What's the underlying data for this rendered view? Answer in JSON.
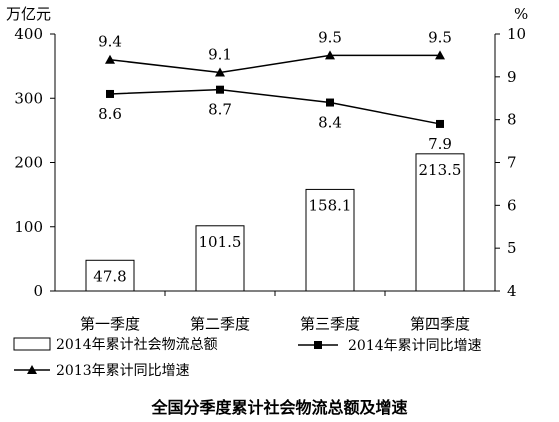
{
  "chart_data": {
    "type": "bar",
    "title": "全国分季度累计社会物流总额及增速",
    "categories": [
      "第一季度",
      "第二季度",
      "第三季度",
      "第四季度"
    ],
    "y_left": {
      "unit": "万亿元",
      "range": [
        0,
        400
      ],
      "ticks": [
        "0",
        "100",
        "200",
        "300",
        "400"
      ]
    },
    "y_right": {
      "unit": "%",
      "range": [
        4,
        10
      ],
      "ticks": [
        "4",
        "5",
        "6",
        "7",
        "8",
        "9",
        "10"
      ]
    },
    "series": [
      {
        "name": "2014年累计社会物流总额",
        "type": "bar",
        "axis": "left",
        "values": [
          47.8,
          101.5,
          158.1,
          213.5
        ],
        "labels": [
          "47.8",
          "101.5",
          "158.1",
          "213.5"
        ]
      },
      {
        "name": "2014年累计同比增速",
        "type": "line",
        "marker": "square",
        "axis": "right",
        "values": [
          8.6,
          8.7,
          8.4,
          7.9
        ],
        "labels": [
          "8.6",
          "8.7",
          "8.4",
          "7.9"
        ]
      },
      {
        "name": "2013年累计同比增速",
        "type": "line",
        "marker": "triangle",
        "axis": "right",
        "values": [
          9.4,
          9.1,
          9.5,
          9.5
        ],
        "labels": [
          "9.4",
          "9.1",
          "9.5",
          "9.5"
        ]
      }
    ],
    "legend_position": "bottom",
    "grid": false
  }
}
